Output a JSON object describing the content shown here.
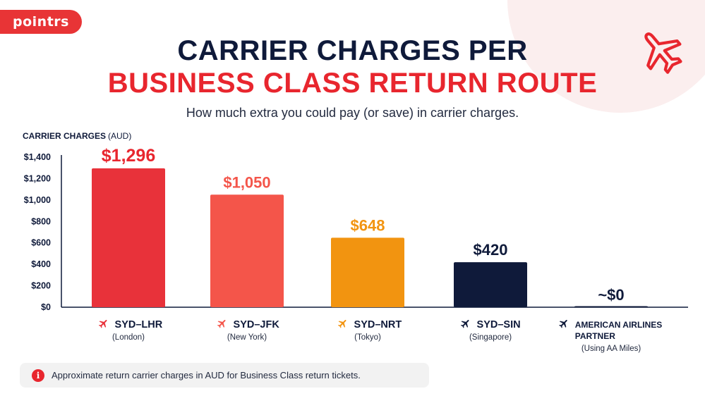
{
  "brand": {
    "logo_text": "pointrs"
  },
  "title_line1": "CARRIER CHARGES PER",
  "title_line2": "BUSINESS CLASS RETURN ROUTE",
  "subtitle": "How much extra you could pay (or save) in carrier charges.",
  "footer": {
    "text": "Approximate return carrier charges in AUD for Business Class return tickets."
  },
  "colors": {
    "red": "#e8323a",
    "coral": "#f4554a",
    "orange": "#f29410",
    "navy": "#0f1a3a"
  },
  "chart_data": {
    "type": "bar",
    "ylabel": "CARRIER CHARGES",
    "ylabel_unit": "(AUD)",
    "ylim": [
      0,
      1400
    ],
    "yticks": [
      0,
      200,
      400,
      600,
      800,
      1000,
      1200,
      1400
    ],
    "ytick_labels": [
      "$0",
      "$200",
      "$400",
      "$600",
      "$800",
      "$1,000",
      "$1,200",
      "$1,400"
    ],
    "grid": false,
    "categories": [
      {
        "lines": [
          "SYD–LHR"
        ],
        "sub": "(London)",
        "icon": "plane-icon",
        "color": "#e8323a"
      },
      {
        "lines": [
          "SYD–JFK"
        ],
        "sub": "(New York)",
        "icon": "plane-icon",
        "color": "#f4554a"
      },
      {
        "lines": [
          "SYD–NRT"
        ],
        "sub": "(Tokyo)",
        "icon": "plane-icon",
        "color": "#f29410"
      },
      {
        "lines": [
          "SYD–SIN"
        ],
        "sub": "(Singapore)",
        "icon": "plane-icon",
        "color": "#0f1a3a"
      },
      {
        "lines": [
          "AMERICAN AIRLINES",
          "PARTNER"
        ],
        "sub": "(Using AA Miles)",
        "icon": "plane-icon",
        "color": "#0f1a3a"
      }
    ],
    "values": [
      1296,
      1050,
      648,
      420,
      0
    ],
    "value_labels": [
      "$1,296",
      "$1,050",
      "$648",
      "$420",
      "~$0"
    ],
    "bar_colors": [
      "#e8323a",
      "#f4554a",
      "#f29410",
      "#0f1a3a",
      "#0f1a3a"
    ],
    "label_colors": [
      "#e8262e",
      "#f4554a",
      "#f29410",
      "#0f1a3a",
      "#0f1a3a"
    ]
  }
}
